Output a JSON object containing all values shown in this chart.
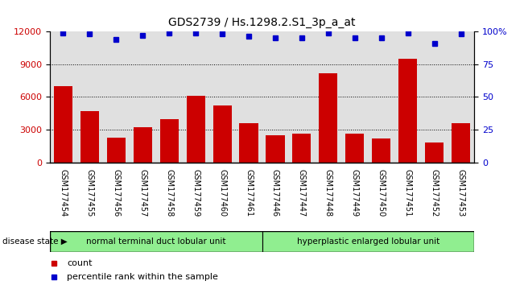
{
  "title": "GDS2739 / Hs.1298.2.S1_3p_a_at",
  "samples": [
    "GSM177454",
    "GSM177455",
    "GSM177456",
    "GSM177457",
    "GSM177458",
    "GSM177459",
    "GSM177460",
    "GSM177461",
    "GSM177446",
    "GSM177447",
    "GSM177448",
    "GSM177449",
    "GSM177450",
    "GSM177451",
    "GSM177452",
    "GSM177453"
  ],
  "counts": [
    7000,
    4700,
    2300,
    3200,
    4000,
    6100,
    5200,
    3600,
    2500,
    2600,
    8200,
    2600,
    2200,
    9500,
    1800,
    3600
  ],
  "percentiles": [
    99,
    98,
    94,
    97,
    99,
    99,
    98,
    96,
    95,
    95,
    99,
    95,
    95,
    99,
    91,
    98
  ],
  "bar_color": "#cc0000",
  "dot_color": "#0000cc",
  "ylim_left": [
    0,
    12000
  ],
  "ylim_right": [
    0,
    100
  ],
  "yticks_left": [
    0,
    3000,
    6000,
    9000,
    12000
  ],
  "yticks_right": [
    0,
    25,
    50,
    75,
    100
  ],
  "groups": [
    {
      "label": "normal terminal duct lobular unit",
      "start": 0,
      "end": 8,
      "color": "#90ee90"
    },
    {
      "label": "hyperplastic enlarged lobular unit",
      "start": 8,
      "end": 16,
      "color": "#90ee90"
    }
  ],
  "disease_state_label": "disease state",
  "legend_count_label": "count",
  "legend_pct_label": "percentile rank within the sample",
  "title_fontsize": 10,
  "tick_fontsize": 7,
  "background_color": "#ffffff",
  "plot_bg_color": "#e0e0e0",
  "xtick_bg_color": "#d0d0d0"
}
